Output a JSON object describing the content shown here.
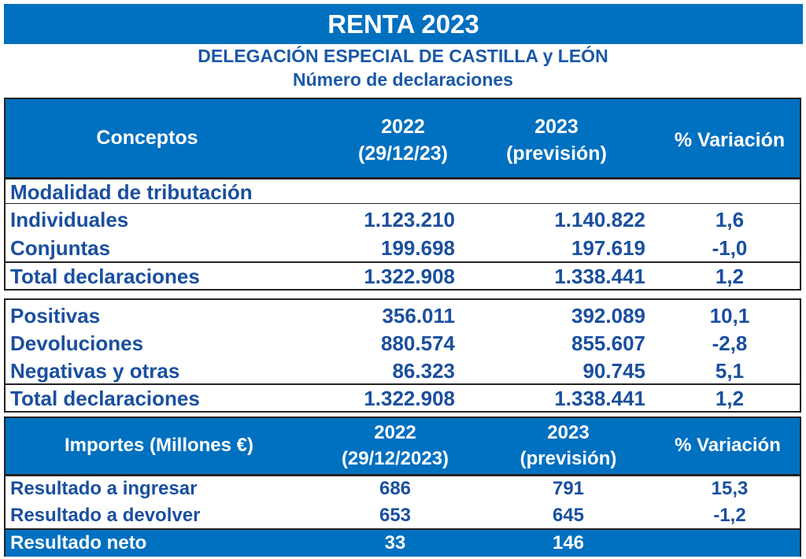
{
  "title": "RENTA 2023",
  "subtitle1": "DELEGACIÓN ESPECIAL DE CASTILLA y LEÓN",
  "subtitle2": "Número de declaraciones",
  "table1": {
    "headers": {
      "concepts": "Conceptos",
      "y2022": "2022",
      "y2022_date": "(29/12/23)",
      "y2023": "2023",
      "y2023_note": "(previsión)",
      "variation": "% Variación"
    },
    "section": "Modalidad de tributación",
    "rows_a": [
      {
        "label": "Individuales",
        "v2022": "1.123.210",
        "v2023": "1.140.822",
        "var": "1,6"
      },
      {
        "label": "Conjuntas",
        "v2022": "199.698",
        "v2023": "197.619",
        "var": "-1,0"
      }
    ],
    "total_a": {
      "label": "Total declaraciones",
      "v2022": "1.322.908",
      "v2023": "1.338.441",
      "var": "1,2"
    },
    "rows_b": [
      {
        "label": "Positivas",
        "v2022": "356.011",
        "v2023": "392.089",
        "var": "10,1"
      },
      {
        "label": "Devoluciones",
        "v2022": "880.574",
        "v2023": "855.607",
        "var": "-2,8"
      },
      {
        "label": "Negativas y otras",
        "v2022": "86.323",
        "v2023": "90.745",
        "var": "5,1"
      }
    ],
    "total_b": {
      "label": "Total declaraciones",
      "v2022": "1.322.908",
      "v2023": "1.338.441",
      "var": "1,2"
    }
  },
  "table2": {
    "headers": {
      "concepts": "Importes (Millones €)",
      "y2022": "2022",
      "y2022_date": "(29/12/2023)",
      "y2023": "2023",
      "y2023_note": "(previsión)",
      "variation": "% Variación"
    },
    "rows": [
      {
        "label": "Resultado a ingresar",
        "v2022": "686",
        "v2023": "791",
        "var": "15,3"
      },
      {
        "label": "Resultado a devolver",
        "v2022": "653",
        "v2023": "645",
        "var": "-1,2"
      }
    ],
    "net": {
      "label": "Resultado neto",
      "v2022": "33",
      "v2023": "146"
    }
  },
  "colors": {
    "header_blue": "#0070c0",
    "text_blue": "#1a4f9e"
  }
}
